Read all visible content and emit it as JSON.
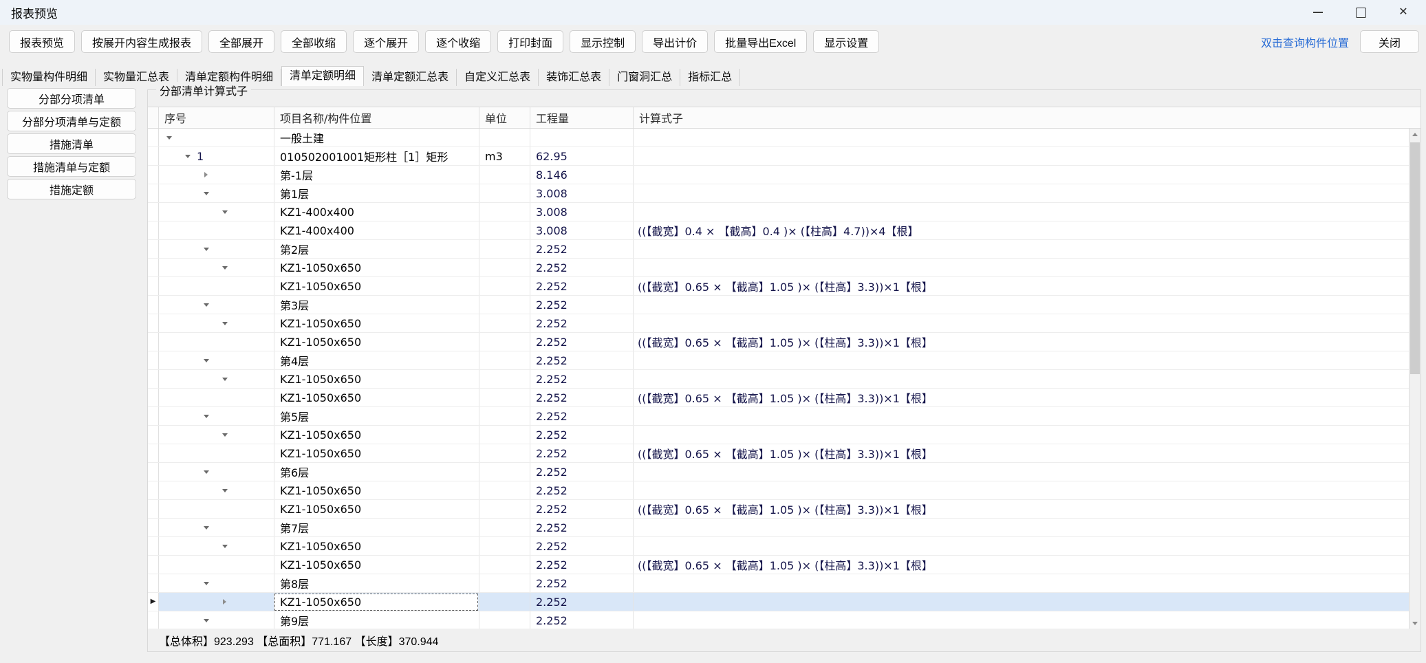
{
  "window": {
    "title": "报表预览"
  },
  "toolbar": {
    "buttons": [
      "报表预览",
      "按展开内容生成报表",
      "全部展开",
      "全部收缩",
      "逐个展开",
      "逐个收缩",
      "打印封面",
      "显示控制",
      "导出计价",
      "批量导出Excel",
      "显示设置"
    ],
    "link_label": "双击查询构件位置",
    "close_label": "关闭",
    "link_color": "#2a6dd5"
  },
  "tabs": {
    "items": [
      "实物量构件明细",
      "实物量汇总表",
      "清单定额构件明细",
      "清单定额明细",
      "清单定额汇总表",
      "自定义汇总表",
      "装饰汇总表",
      "门窗洞汇总",
      "指标汇总"
    ],
    "selected_index": 3,
    "selected_label": "清单定额明细"
  },
  "sidebar": {
    "buttons": [
      "分部分项清单",
      "分部分项清单与定额",
      "措施清单",
      "措施清单与定额",
      "措施定额"
    ]
  },
  "panel": {
    "title": "分部清单计算式子"
  },
  "grid": {
    "columns": [
      "序号",
      "项目名称/构件位置",
      "单位",
      "工程量",
      "计算式子"
    ],
    "rows": [
      {
        "level": 0,
        "arrow": "expanded",
        "seq": "",
        "name": "一般土建",
        "unit": "",
        "qty": "",
        "formula": ""
      },
      {
        "level": 1,
        "arrow": "expanded",
        "seq": "1",
        "name": "010502001001矩形柱［1］矩形",
        "unit": "m3",
        "qty": "62.95",
        "formula": ""
      },
      {
        "level": 2,
        "arrow": "collapsed",
        "seq": "",
        "name": "第-1层",
        "unit": "",
        "qty": "8.146",
        "formula": ""
      },
      {
        "level": 2,
        "arrow": "expanded",
        "seq": "",
        "name": "第1层",
        "unit": "",
        "qty": "3.008",
        "formula": ""
      },
      {
        "level": 3,
        "arrow": "expanded",
        "seq": "",
        "name": "KZ1-400x400",
        "unit": "",
        "qty": "3.008",
        "formula": ""
      },
      {
        "level": 4,
        "arrow": "none",
        "seq": "",
        "name": "KZ1-400x400",
        "unit": "",
        "qty": "3.008",
        "formula": "((【截宽】0.4 × 【截高】0.4 )× (【柱高】4.7))×4【根】"
      },
      {
        "level": 2,
        "arrow": "expanded",
        "seq": "",
        "name": "第2层",
        "unit": "",
        "qty": "2.252",
        "formula": ""
      },
      {
        "level": 3,
        "arrow": "expanded",
        "seq": "",
        "name": "KZ1-1050x650",
        "unit": "",
        "qty": "2.252",
        "formula": ""
      },
      {
        "level": 4,
        "arrow": "none",
        "seq": "",
        "name": "KZ1-1050x650",
        "unit": "",
        "qty": "2.252",
        "formula": "((【截宽】0.65 × 【截高】1.05 )× (【柱高】3.3))×1【根】"
      },
      {
        "level": 2,
        "arrow": "expanded",
        "seq": "",
        "name": "第3层",
        "unit": "",
        "qty": "2.252",
        "formula": ""
      },
      {
        "level": 3,
        "arrow": "expanded",
        "seq": "",
        "name": "KZ1-1050x650",
        "unit": "",
        "qty": "2.252",
        "formula": ""
      },
      {
        "level": 4,
        "arrow": "none",
        "seq": "",
        "name": "KZ1-1050x650",
        "unit": "",
        "qty": "2.252",
        "formula": "((【截宽】0.65 × 【截高】1.05 )× (【柱高】3.3))×1【根】"
      },
      {
        "level": 2,
        "arrow": "expanded",
        "seq": "",
        "name": "第4层",
        "unit": "",
        "qty": "2.252",
        "formula": ""
      },
      {
        "level": 3,
        "arrow": "expanded",
        "seq": "",
        "name": "KZ1-1050x650",
        "unit": "",
        "qty": "2.252",
        "formula": ""
      },
      {
        "level": 4,
        "arrow": "none",
        "seq": "",
        "name": "KZ1-1050x650",
        "unit": "",
        "qty": "2.252",
        "formula": "((【截宽】0.65 × 【截高】1.05 )× (【柱高】3.3))×1【根】"
      },
      {
        "level": 2,
        "arrow": "expanded",
        "seq": "",
        "name": "第5层",
        "unit": "",
        "qty": "2.252",
        "formula": ""
      },
      {
        "level": 3,
        "arrow": "expanded",
        "seq": "",
        "name": "KZ1-1050x650",
        "unit": "",
        "qty": "2.252",
        "formula": ""
      },
      {
        "level": 4,
        "arrow": "none",
        "seq": "",
        "name": "KZ1-1050x650",
        "unit": "",
        "qty": "2.252",
        "formula": "((【截宽】0.65 × 【截高】1.05 )× (【柱高】3.3))×1【根】"
      },
      {
        "level": 2,
        "arrow": "expanded",
        "seq": "",
        "name": "第6层",
        "unit": "",
        "qty": "2.252",
        "formula": ""
      },
      {
        "level": 3,
        "arrow": "expanded",
        "seq": "",
        "name": "KZ1-1050x650",
        "unit": "",
        "qty": "2.252",
        "formula": ""
      },
      {
        "level": 4,
        "arrow": "none",
        "seq": "",
        "name": "KZ1-1050x650",
        "unit": "",
        "qty": "2.252",
        "formula": "((【截宽】0.65 × 【截高】1.05 )× (【柱高】3.3))×1【根】"
      },
      {
        "level": 2,
        "arrow": "expanded",
        "seq": "",
        "name": "第7层",
        "unit": "",
        "qty": "2.252",
        "formula": ""
      },
      {
        "level": 3,
        "arrow": "expanded",
        "seq": "",
        "name": "KZ1-1050x650",
        "unit": "",
        "qty": "2.252",
        "formula": ""
      },
      {
        "level": 4,
        "arrow": "none",
        "seq": "",
        "name": "KZ1-1050x650",
        "unit": "",
        "qty": "2.252",
        "formula": "((【截宽】0.65 × 【截高】1.05 )× (【柱高】3.3))×1【根】"
      },
      {
        "level": 2,
        "arrow": "expanded",
        "seq": "",
        "name": "第8层",
        "unit": "",
        "qty": "2.252",
        "formula": ""
      },
      {
        "level": 3,
        "arrow": "collapsed",
        "seq": "",
        "name": "KZ1-1050x650",
        "unit": "",
        "qty": "2.252",
        "formula": "",
        "selected": true,
        "editing": true
      },
      {
        "level": 2,
        "arrow": "expanded",
        "seq": "",
        "name": "第9层",
        "unit": "",
        "qty": "2.252",
        "formula": ""
      }
    ]
  },
  "status": {
    "summary": "【总体积】923.293 【总面积】771.167 【长度】370.944"
  }
}
